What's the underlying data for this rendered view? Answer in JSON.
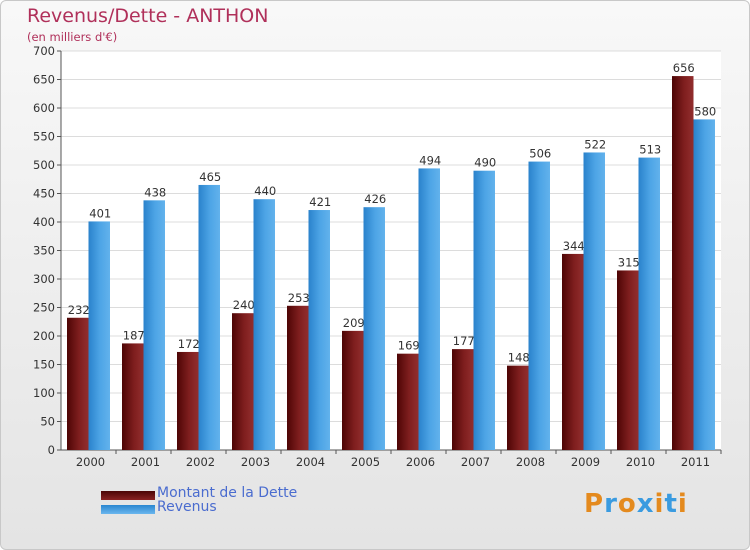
{
  "chart_data": {
    "type": "bar",
    "title": "Revenus/Dette - ANTHON",
    "subtitle": "(en milliers d'€)",
    "categories": [
      "2000",
      "2001",
      "2002",
      "2003",
      "2004",
      "2005",
      "2006",
      "2007",
      "2008",
      "2009",
      "2010",
      "2011"
    ],
    "series": [
      {
        "name": "Montant de la Dette",
        "color": "#7a1414",
        "values": [
          232,
          187,
          172,
          240,
          253,
          209,
          169,
          177,
          148,
          344,
          315,
          656
        ]
      },
      {
        "name": "Revenus",
        "color": "#3b95d8",
        "values": [
          401,
          438,
          465,
          440,
          421,
          426,
          494,
          490,
          506,
          522,
          513,
          580
        ]
      }
    ],
    "ylim": [
      0,
      700
    ],
    "yticks": [
      0,
      50,
      100,
      150,
      200,
      250,
      300,
      350,
      400,
      450,
      500,
      550,
      600,
      650,
      700
    ],
    "grid": true,
    "legend": "bottom-left"
  },
  "logo": {
    "letters": [
      "P",
      "r",
      "o",
      "x",
      "i",
      "t",
      "i"
    ]
  }
}
